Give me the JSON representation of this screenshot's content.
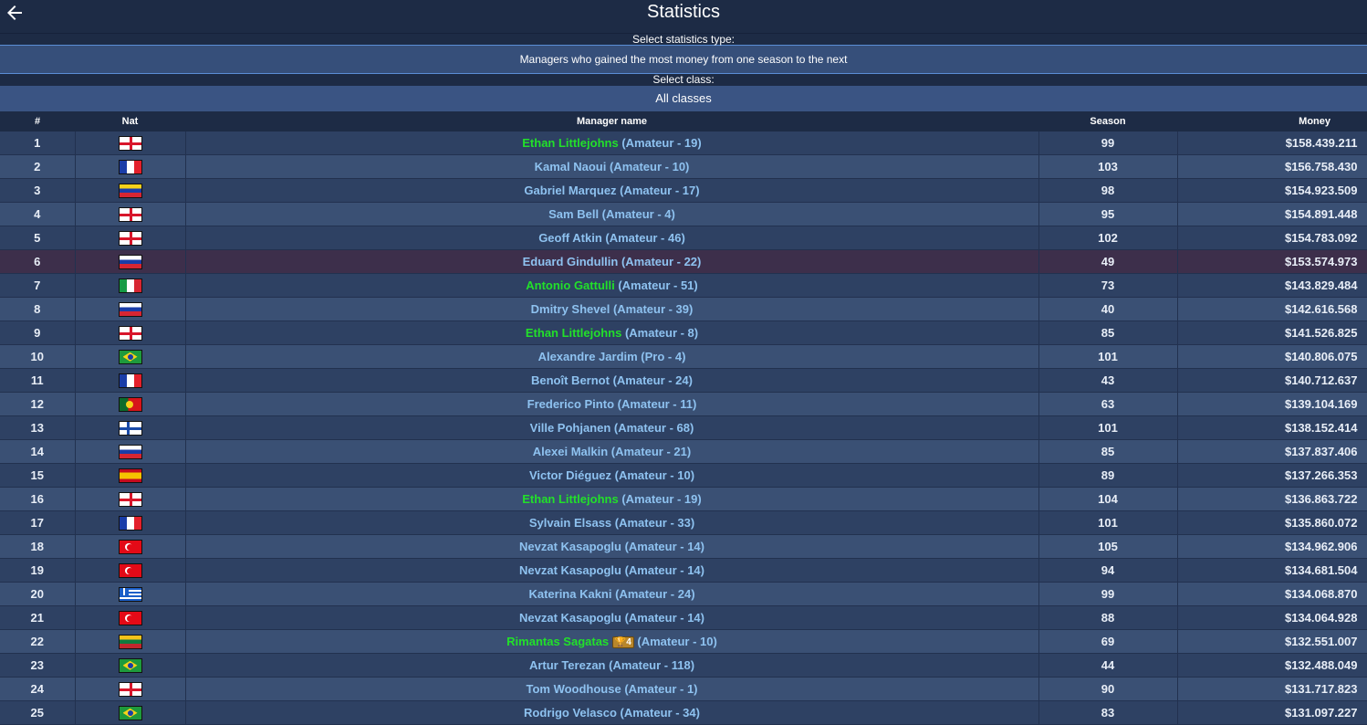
{
  "header": {
    "title": "Statistics",
    "back_icon": "arrow-left-icon"
  },
  "filters": {
    "type_label": "Select statistics type:",
    "type_value": "Managers who gained the most money from one season to the next",
    "class_label": "Select class:",
    "class_value": "All classes"
  },
  "table": {
    "columns": [
      "#",
      "Nat",
      "Manager name",
      "Season",
      "Money"
    ],
    "rows": [
      {
        "rank": "1",
        "flag": "eng",
        "name": "Ethan Littlejohns",
        "cls": " (Amateur - 19)",
        "green": true,
        "season": "99",
        "money": "$158.439.211"
      },
      {
        "rank": "2",
        "flag": "fra",
        "name": "Kamal Naoui",
        "cls": " (Amateur - 10)",
        "season": "103",
        "money": "$156.758.430"
      },
      {
        "rank": "3",
        "flag": "ven",
        "name": "Gabriel Marquez",
        "cls": " (Amateur - 17)",
        "season": "98",
        "money": "$154.923.509"
      },
      {
        "rank": "4",
        "flag": "eng",
        "name": "Sam Bell",
        "cls": " (Amateur - 4)",
        "season": "95",
        "money": "$154.891.448"
      },
      {
        "rank": "5",
        "flag": "eng",
        "name": "Geoff Atkin",
        "cls": " (Amateur - 46)",
        "season": "102",
        "money": "$154.783.092"
      },
      {
        "rank": "6",
        "flag": "rus",
        "name": "Eduard Gindullin",
        "cls": " (Amateur - 22)",
        "highlight": true,
        "season": "49",
        "money": "$153.574.973"
      },
      {
        "rank": "7",
        "flag": "ita",
        "name": "Antonio Gattulli",
        "cls": " (Amateur - 51)",
        "green": true,
        "season": "73",
        "money": "$143.829.484"
      },
      {
        "rank": "8",
        "flag": "rus",
        "name": "Dmitry Shevel",
        "cls": " (Amateur - 39)",
        "season": "40",
        "money": "$142.616.568"
      },
      {
        "rank": "9",
        "flag": "eng",
        "name": "Ethan Littlejohns",
        "cls": " (Amateur - 8)",
        "green": true,
        "season": "85",
        "money": "$141.526.825"
      },
      {
        "rank": "10",
        "flag": "bra",
        "name": "Alexandre Jardim",
        "cls": " (Pro - 4)",
        "season": "101",
        "money": "$140.806.075"
      },
      {
        "rank": "11",
        "flag": "fra",
        "name": "Benoît Bernot",
        "cls": " (Amateur - 24)",
        "season": "43",
        "money": "$140.712.637"
      },
      {
        "rank": "12",
        "flag": "por",
        "name": "Frederico Pinto",
        "cls": " (Amateur - 11)",
        "season": "63",
        "money": "$139.104.169"
      },
      {
        "rank": "13",
        "flag": "fin",
        "name": "Ville Pohjanen",
        "cls": " (Amateur - 68)",
        "season": "101",
        "money": "$138.152.414"
      },
      {
        "rank": "14",
        "flag": "rus",
        "name": "Alexei Malkin",
        "cls": " (Amateur - 21)",
        "season": "85",
        "money": "$137.837.406"
      },
      {
        "rank": "15",
        "flag": "esp",
        "name": "Victor Diéguez",
        "cls": " (Amateur - 10)",
        "season": "89",
        "money": "$137.266.353"
      },
      {
        "rank": "16",
        "flag": "eng",
        "name": "Ethan Littlejohns",
        "cls": " (Amateur - 19)",
        "green": true,
        "season": "104",
        "money": "$136.863.722"
      },
      {
        "rank": "17",
        "flag": "fra",
        "name": "Sylvain Elsass",
        "cls": " (Amateur - 33)",
        "season": "101",
        "money": "$135.860.072"
      },
      {
        "rank": "18",
        "flag": "tur",
        "name": "Nevzat Kasapoglu",
        "cls": " (Amateur - 14)",
        "season": "105",
        "money": "$134.962.906"
      },
      {
        "rank": "19",
        "flag": "tur",
        "name": "Nevzat Kasapoglu",
        "cls": " (Amateur - 14)",
        "season": "94",
        "money": "$134.681.504"
      },
      {
        "rank": "20",
        "flag": "gre",
        "name": "Katerina Kakni",
        "cls": " (Amateur - 24)",
        "season": "99",
        "money": "$134.068.870"
      },
      {
        "rank": "21",
        "flag": "tur",
        "name": "Nevzat Kasapoglu",
        "cls": " (Amateur - 14)",
        "season": "88",
        "money": "$134.064.928"
      },
      {
        "rank": "22",
        "flag": "lit",
        "name": "Rimantas Sagatas",
        "trophy": "🏆4",
        "cls": " (Amateur - 10)",
        "green": true,
        "season": "69",
        "money": "$132.551.007"
      },
      {
        "rank": "23",
        "flag": "bra",
        "name": "Artur Terezan",
        "cls": " (Amateur - 118)",
        "season": "44",
        "money": "$132.488.049"
      },
      {
        "rank": "24",
        "flag": "eng",
        "name": "Tom Woodhouse",
        "cls": " (Amateur - 1)",
        "season": "90",
        "money": "$131.717.823"
      },
      {
        "rank": "25",
        "flag": "bra",
        "name": "Rodrigo Velasco",
        "cls": " (Amateur - 34)",
        "season": "83",
        "money": "$131.097.227"
      }
    ]
  }
}
